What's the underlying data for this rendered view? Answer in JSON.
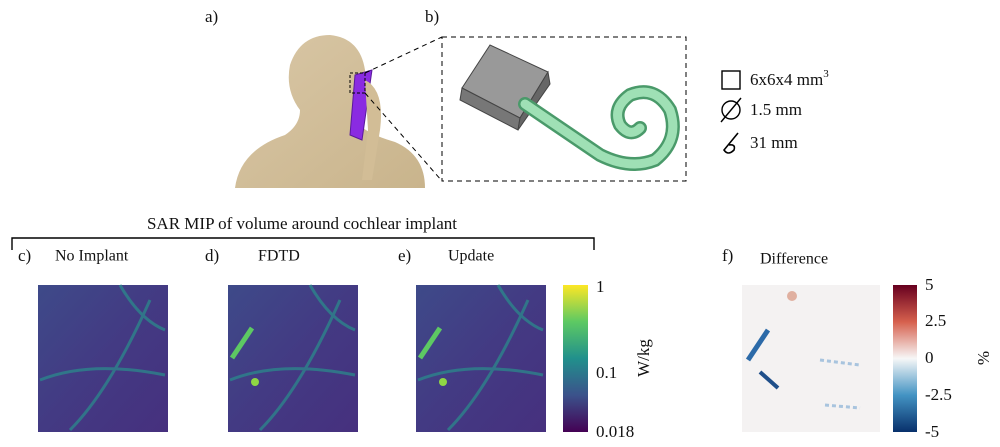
{
  "panels": {
    "a": "a)",
    "b": "b)",
    "c": "c)",
    "d": "d)",
    "e": "e)",
    "f": "f)"
  },
  "specs": [
    {
      "text": "6x6x4 mm",
      "sup": "3"
    },
    {
      "text": "1.5 mm"
    },
    {
      "text": "31 mm"
    }
  ],
  "group_title": "SAR MIP of volume around cochlear implant",
  "titles": {
    "c": "No Implant",
    "d": "FDTD",
    "e": "Update",
    "f": "Difference"
  },
  "sar_colorbar": {
    "label": "W/kg",
    "ticks": [
      "1",
      "0.1",
      "0.018"
    ]
  },
  "diff_colorbar": {
    "label": "%",
    "ticks": [
      "5",
      "2.5",
      "0",
      "-2.5",
      "-5"
    ]
  }
}
